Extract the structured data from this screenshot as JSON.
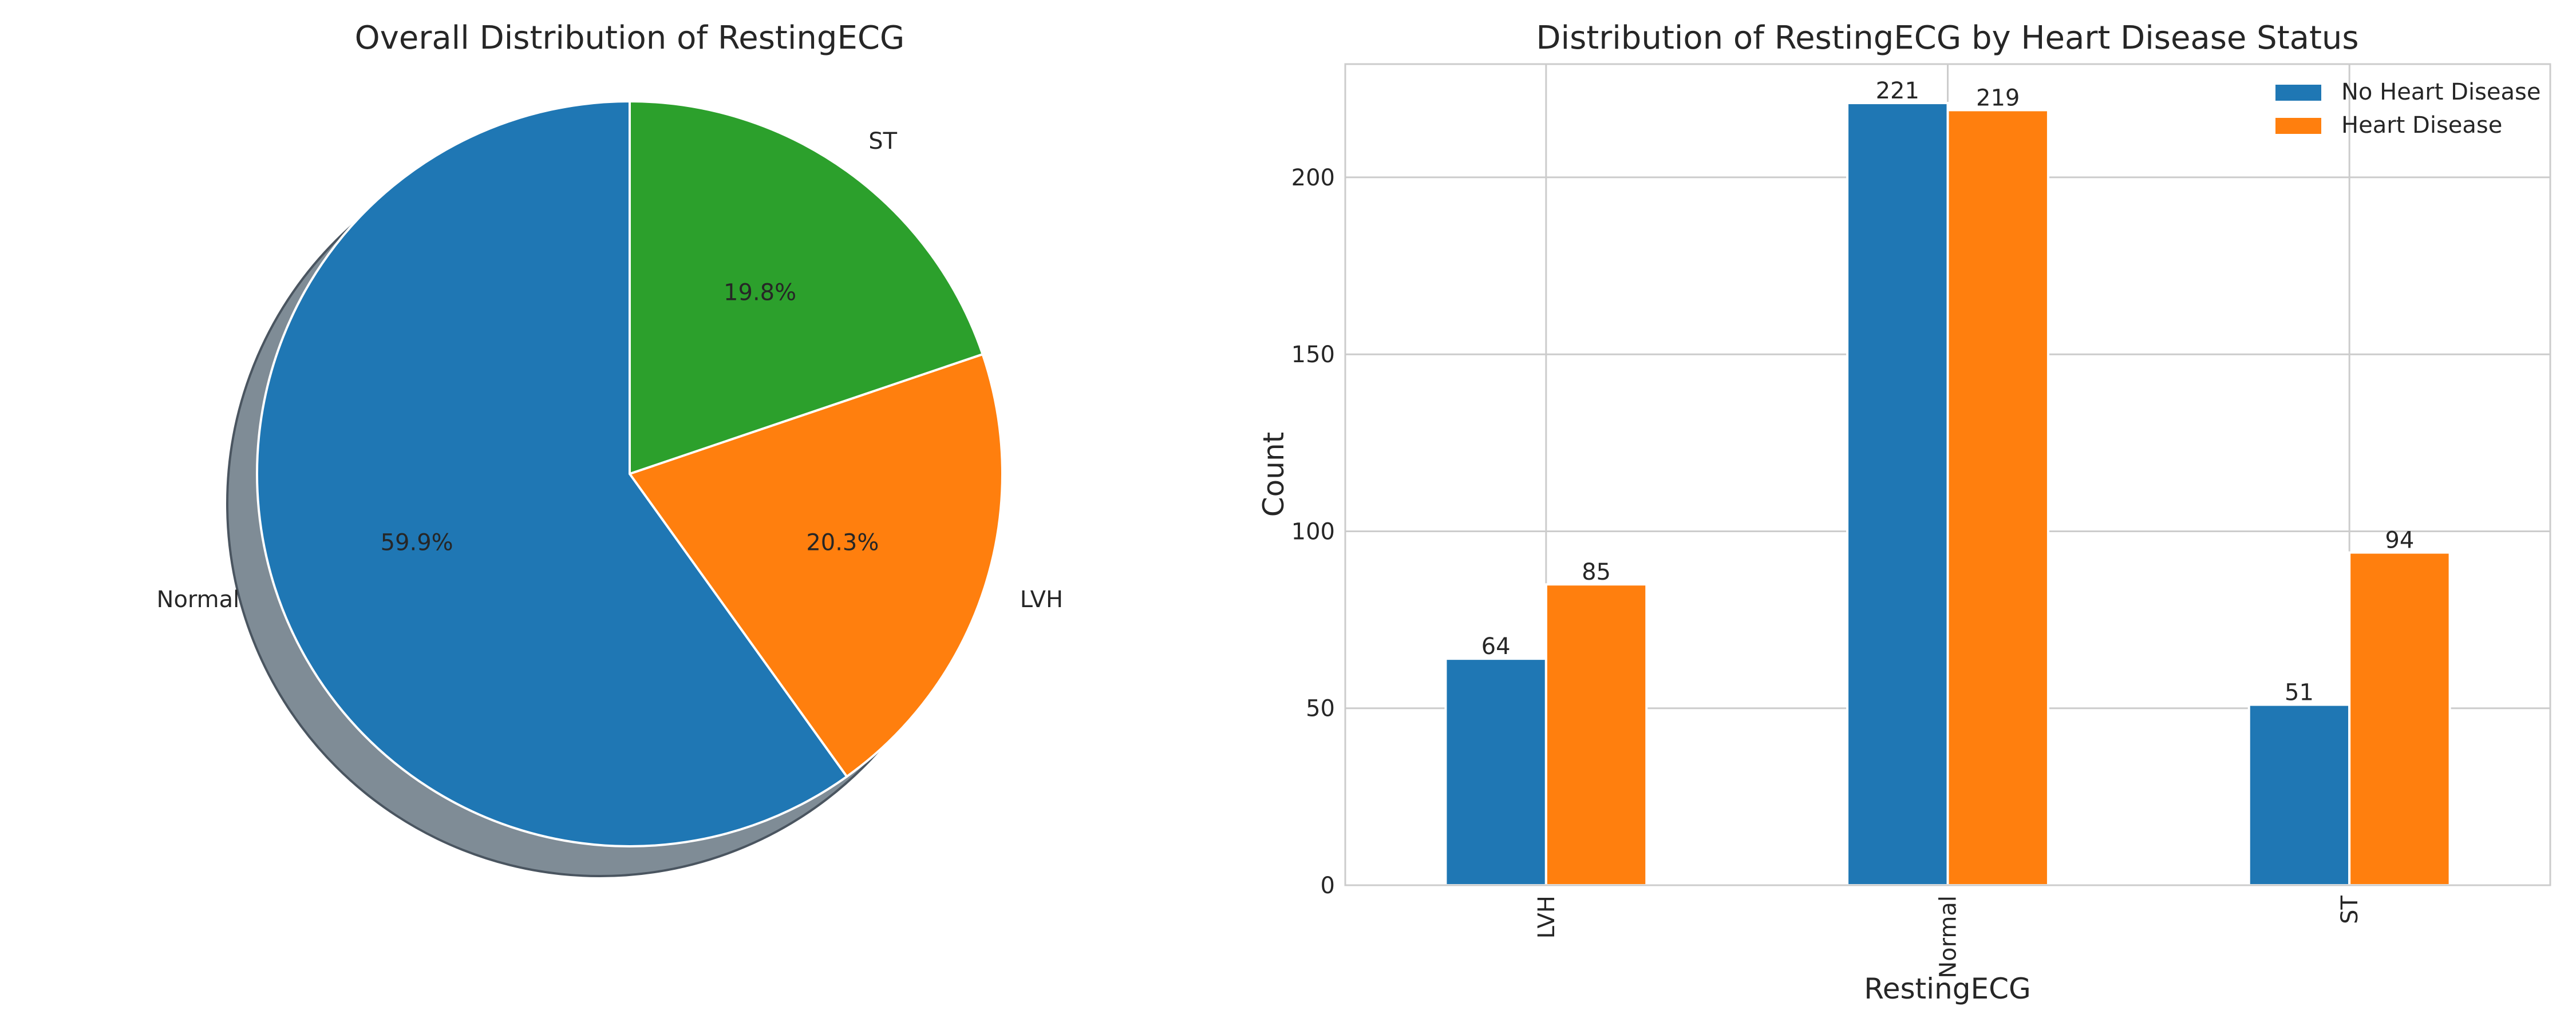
{
  "chart_data": [
    {
      "type": "pie",
      "title": "Overall Distribution of RestingECG",
      "labels": [
        "Normal",
        "LVH",
        "ST"
      ],
      "values": [
        59.9,
        20.3,
        19.8
      ],
      "value_labels": [
        "59.9%",
        "20.3%",
        "19.8%"
      ],
      "colors": [
        "#1f77b4",
        "#ff7f0e",
        "#2ca02c"
      ],
      "start_angle_deg": 90,
      "direction": "counterclockwise",
      "shadow": true
    },
    {
      "type": "bar",
      "title": "Distribution of RestingECG by Heart Disease Status",
      "xlabel": "RestingECG",
      "ylabel": "Count",
      "categories": [
        "LVH",
        "Normal",
        "ST"
      ],
      "series": [
        {
          "name": "No Heart Disease",
          "values": [
            64,
            221,
            51
          ],
          "color": "#1f77b4"
        },
        {
          "name": "Heart Disease",
          "values": [
            85,
            219,
            94
          ],
          "color": "#ff7f0e"
        }
      ],
      "ylim": [
        0,
        232
      ],
      "yticks": [
        0,
        50,
        100,
        150,
        200
      ],
      "grid": true,
      "legend_position": "top-right",
      "x_tick_rotation_deg": 90
    }
  ]
}
